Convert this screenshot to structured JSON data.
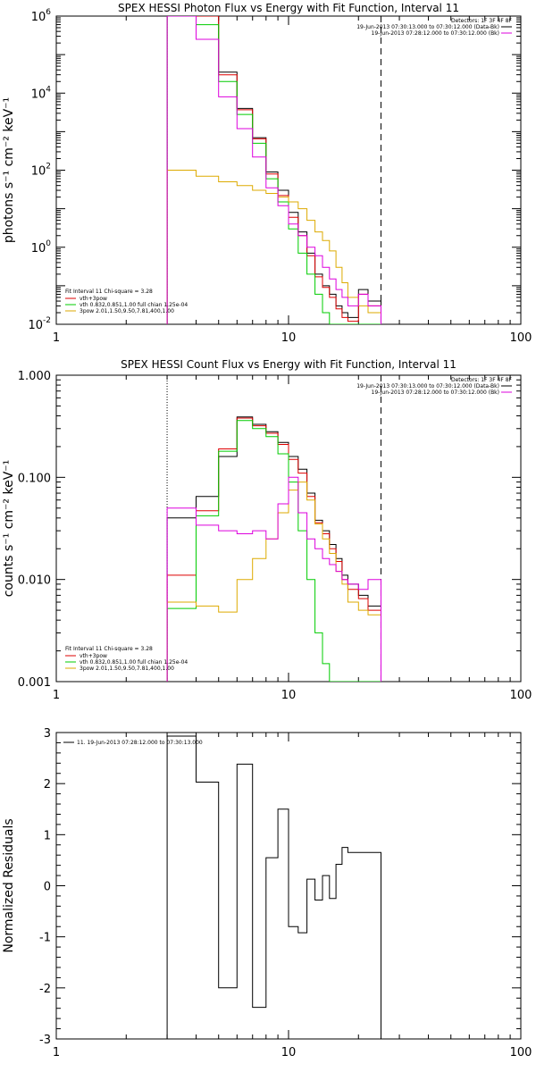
{
  "chart_data": [
    {
      "type": "line",
      "title": "SPEX HESSI Photon Flux vs Energy with Fit Function, Interval 11",
      "ylabel": "photons s⁻¹ cm⁻² keV⁻¹",
      "xscale": "log",
      "yscale": "log",
      "xlim": [
        1,
        100
      ],
      "ylim": [
        0.01,
        1000000
      ],
      "x_ticks": [
        "1",
        "10",
        "100"
      ],
      "y_ticks": [
        {
          "value": 1000000,
          "base": "10",
          "exp": "6"
        },
        {
          "value": 10000,
          "base": "10",
          "exp": "4"
        },
        {
          "value": 100,
          "base": "10",
          "exp": "2"
        },
        {
          "value": 1,
          "base": "10",
          "exp": "0"
        },
        {
          "value": 0.01,
          "base": "10",
          "exp": "-2"
        }
      ],
      "bin_edges": [
        3,
        4,
        5,
        6,
        7,
        8,
        9,
        10,
        11,
        12,
        13,
        14,
        15,
        16,
        17,
        18,
        20,
        22,
        25
      ],
      "series": [
        {
          "name": "data",
          "color": "#000000",
          "values": [
            1000000,
            1000000,
            35000,
            4000,
            700,
            90,
            30,
            8,
            2.5,
            0.7,
            0.2,
            0.1,
            0.06,
            0.03,
            0.02,
            0.015,
            0.08,
            0.04
          ]
        },
        {
          "name": "vth+3pow",
          "color": "#dd0000",
          "values": [
            1000000,
            1000000,
            30000,
            3700,
            650,
            80,
            22,
            6,
            2,
            0.6,
            0.17,
            0.09,
            0.05,
            0.025,
            0.015,
            0.012,
            0.06,
            0.03
          ]
        },
        {
          "name": "vth 0.832,0.851,1.00  full chian 1.25e-04",
          "color": "#00cc00",
          "values": [
            1000000,
            600000,
            20000,
            2800,
            500,
            60,
            15,
            3,
            0.7,
            0.2,
            0.06,
            0.02,
            0.01,
            0.01,
            0.01,
            0.01,
            0.01,
            0.01
          ]
        },
        {
          "name": "3pow 2.01,1.50,9.50,7.81,400,1.00",
          "color": "#ddaa00",
          "values": [
            100,
            70,
            50,
            40,
            30,
            25,
            20,
            15,
            10,
            5,
            2.5,
            1.5,
            0.8,
            0.3,
            0.12,
            0.05,
            0.03,
            0.02
          ]
        },
        {
          "name": "19-Jun-2013 07:28:12.000 to 07:30:12.000 (Bk)",
          "color": "#dd00dd",
          "values": [
            1000000,
            250000,
            8000,
            1200,
            220,
            35,
            12,
            4,
            2,
            1,
            0.6,
            0.3,
            0.15,
            0.08,
            0.05,
            0.03,
            0.06,
            0.03
          ]
        }
      ],
      "vline_dotted": 3,
      "vline_dashed": 25,
      "legend_tr": {
        "header": "Detectors: 1F 3F 4F 8F",
        "entries": [
          {
            "label": "19-Jun-2013 07:30:13.000 to 07:30:12.000 (Data-Bk)",
            "color": "#000000"
          },
          {
            "label": "19-Jun-2013 07:28:12.000 to 07:30:12.000 (Bk)",
            "color": "#dd00dd"
          }
        ]
      },
      "legend_bl": {
        "header": "Fit Interval 11    Chi-square = 3.28",
        "entries": [
          {
            "label": "vth+3pow",
            "color": "#dd0000"
          },
          {
            "label": "vth 0.832,0.851,1.00  full chian 1.25e-04",
            "color": "#00cc00"
          },
          {
            "label": "3pow 2.01,1.50,9.50,7.81,400,1.00",
            "color": "#ddaa00"
          }
        ]
      }
    },
    {
      "type": "line",
      "title": "SPEX HESSI Count Flux vs Energy with Fit Function, Interval 11",
      "ylabel": "counts s⁻¹ cm⁻² keV⁻¹",
      "xscale": "log",
      "yscale": "log",
      "xlim": [
        1,
        100
      ],
      "ylim": [
        0.001,
        1.0
      ],
      "x_ticks": [
        "1",
        "10",
        "100"
      ],
      "y_ticks": [
        {
          "value": 1.0,
          "label": "1.000"
        },
        {
          "value": 0.1,
          "label": "0.100"
        },
        {
          "value": 0.01,
          "label": "0.010"
        },
        {
          "value": 0.001,
          "label": "0.001"
        }
      ],
      "bin_edges": [
        3,
        4,
        5,
        6,
        7,
        8,
        9,
        10,
        11,
        12,
        13,
        14,
        15,
        16,
        17,
        18,
        20,
        22,
        25
      ],
      "series": [
        {
          "name": "data",
          "color": "#000000",
          "values": [
            0.04,
            0.065,
            0.16,
            0.39,
            0.33,
            0.28,
            0.22,
            0.16,
            0.12,
            0.07,
            0.038,
            0.03,
            0.022,
            0.016,
            0.011,
            0.009,
            0.007,
            0.0055
          ]
        },
        {
          "name": "vth+3pow",
          "color": "#dd0000",
          "values": [
            0.011,
            0.047,
            0.19,
            0.38,
            0.32,
            0.27,
            0.21,
            0.15,
            0.11,
            0.065,
            0.036,
            0.028,
            0.02,
            0.015,
            0.01,
            0.008,
            0.0065,
            0.005
          ]
        },
        {
          "name": "vth",
          "color": "#00cc00",
          "values": [
            0.0052,
            0.042,
            0.18,
            0.36,
            0.3,
            0.25,
            0.17,
            0.09,
            0.03,
            0.01,
            0.003,
            0.0015,
            0.001,
            0.001,
            0.001,
            0.001,
            0.001,
            0.001
          ]
        },
        {
          "name": "3pow",
          "color": "#ddaa00",
          "values": [
            0.006,
            0.0055,
            0.0048,
            0.01,
            0.016,
            0.025,
            0.045,
            0.075,
            0.09,
            0.06,
            0.035,
            0.025,
            0.018,
            0.012,
            0.009,
            0.006,
            0.005,
            0.0045
          ]
        },
        {
          "name": "Bk",
          "color": "#dd00dd",
          "values": [
            0.05,
            0.034,
            0.03,
            0.028,
            0.03,
            0.025,
            0.055,
            0.1,
            0.045,
            0.025,
            0.02,
            0.016,
            0.014,
            0.012,
            0.01,
            0.009,
            0.008,
            0.01
          ]
        }
      ],
      "vline_dotted": 3,
      "vline_dashed": 25,
      "legend_tr": {
        "header": "Detectors: 1F 3F 4F 8F",
        "entries": [
          {
            "label": "19-Jun-2013 07:30:13.000 to 07:30:12.000 (Data-Bk)",
            "color": "#000000"
          },
          {
            "label": "19-Jun-2013 07:28:12.000 to 07:30:12.000 (Bk)",
            "color": "#dd00dd"
          }
        ]
      },
      "legend_bl": {
        "header": "Fit Interval 11    Chi-square = 3.28",
        "entries": [
          {
            "label": "vth+3pow",
            "color": "#dd0000"
          },
          {
            "label": "vth 0.832,0.851,1.00  full chian 1.25e-04",
            "color": "#00cc00"
          },
          {
            "label": "3pow 2.01,1.50,9.50,7.81,400,1.00",
            "color": "#ddaa00"
          }
        ]
      }
    },
    {
      "type": "line",
      "title": "",
      "ylabel": "Normalized Residuals",
      "xscale": "log",
      "yscale": "linear",
      "xlim": [
        1,
        100
      ],
      "ylim": [
        -3,
        3
      ],
      "x_ticks": [
        "1",
        "10",
        "100"
      ],
      "y_ticks": [
        {
          "value": 3,
          "label": "3"
        },
        {
          "value": 2,
          "label": "2"
        },
        {
          "value": 1,
          "label": "1"
        },
        {
          "value": 0,
          "label": "0"
        },
        {
          "value": -1,
          "label": "-1"
        },
        {
          "value": -2,
          "label": "-2"
        },
        {
          "value": -3,
          "label": "-3"
        }
      ],
      "bin_edges": [
        3,
        4,
        5,
        6,
        7,
        8,
        9,
        10,
        11,
        12,
        13,
        14,
        15,
        16,
        17,
        18,
        20,
        22,
        25
      ],
      "series": [
        {
          "name": "11. 19-Jun-2013 07:28:12.000 to 07:30:13.000",
          "color": "#000000",
          "values": [
            2.93,
            2.03,
            -2.0,
            2.38,
            -2.38,
            0.55,
            1.5,
            -0.8,
            -0.92,
            0.13,
            -0.28,
            0.2,
            -0.25,
            0.42,
            0.75,
            0.65,
            0.65,
            0.65
          ]
        }
      ],
      "legend_tl": {
        "entries": [
          {
            "label": "11. 19-Jun-2013 07:28:12.000 to 07:30:13.000",
            "color": "#000000"
          }
        ]
      }
    }
  ]
}
